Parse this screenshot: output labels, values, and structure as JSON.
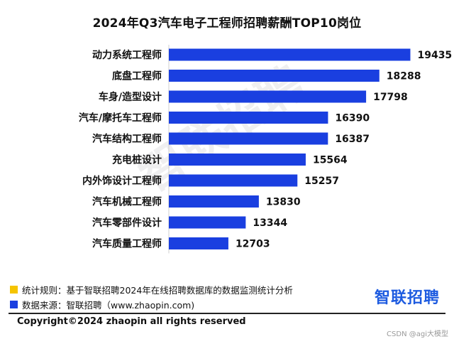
{
  "chart_data": {
    "type": "bar",
    "orientation": "horizontal",
    "title": "2024年Q3汽车电子工程师招聘薪酬TOP10岗位",
    "categories": [
      "动力系统工程师",
      "底盘工程师",
      "车身/造型设计",
      "汽车/摩托车工程师",
      "汽车结构工程师",
      "充电桩设计",
      "内外饰设计工程师",
      "汽车机械工程师",
      "汽车零部件设计",
      "汽车质量工程师"
    ],
    "values": [
      19435,
      18288,
      17798,
      16390,
      16387,
      15564,
      15257,
      13830,
      13344,
      12703
    ],
    "xlim": [
      10500,
      20000
    ],
    "xlabel": "",
    "ylabel": "",
    "bar_color": "#1a3fe0",
    "grid": false
  },
  "watermark": "智联招聘",
  "notes": [
    {
      "text": "统计规则：基于智联招聘2024年在线招聘数据库的数据监测统计分析",
      "color": "#f5c400"
    },
    {
      "text": "数据来源：智联招聘（www.zhaopin.com)",
      "color": "#1a3fe0"
    }
  ],
  "logo": {
    "text": "智联招聘"
  },
  "footer": {
    "copyright": "Copyright©2024 zhaopin all rights reserved",
    "credit": "CSDN @agi大模型"
  }
}
